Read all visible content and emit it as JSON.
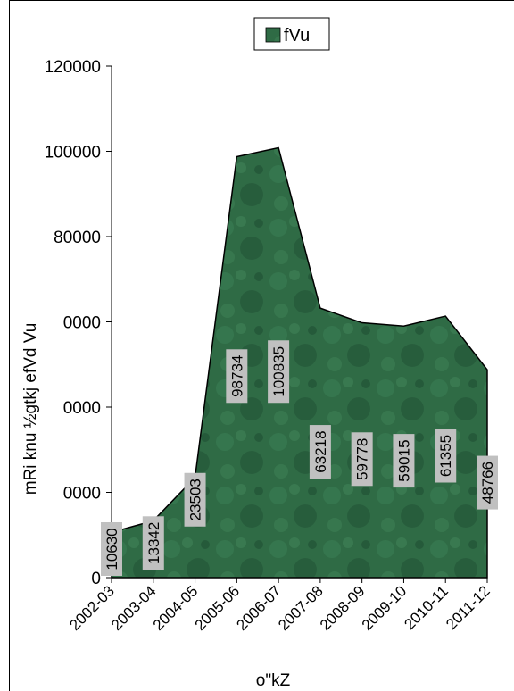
{
  "chart_data": {
    "type": "area",
    "categories": [
      "2002-03",
      "2003-04",
      "2004-05",
      "2005-06",
      "2006-07",
      "2007-08",
      "2008-09",
      "2009-10",
      "2010-11",
      "2011-12"
    ],
    "series": [
      {
        "name": "fVu",
        "values": [
          10630,
          13342,
          23503,
          98734,
          100835,
          63218,
          59778,
          59015,
          61355,
          48766
        ]
      }
    ],
    "data_labels": [
      "10630",
      "13342",
      "23503",
      "98734",
      "100835",
      "63218",
      "59778",
      "59015",
      "61355",
      "48766"
    ],
    "y_tick_labels": [
      "0",
      "0000",
      "0000",
      "0000",
      "80000",
      "100000",
      "120000"
    ],
    "ylim": [
      0,
      120000
    ],
    "ylabel": "mRi knu ½gtkj efVd Vu",
    "xlabel": "o\"kZ",
    "legend_position": "top",
    "series_color": "#2f6b45",
    "grid": false
  }
}
